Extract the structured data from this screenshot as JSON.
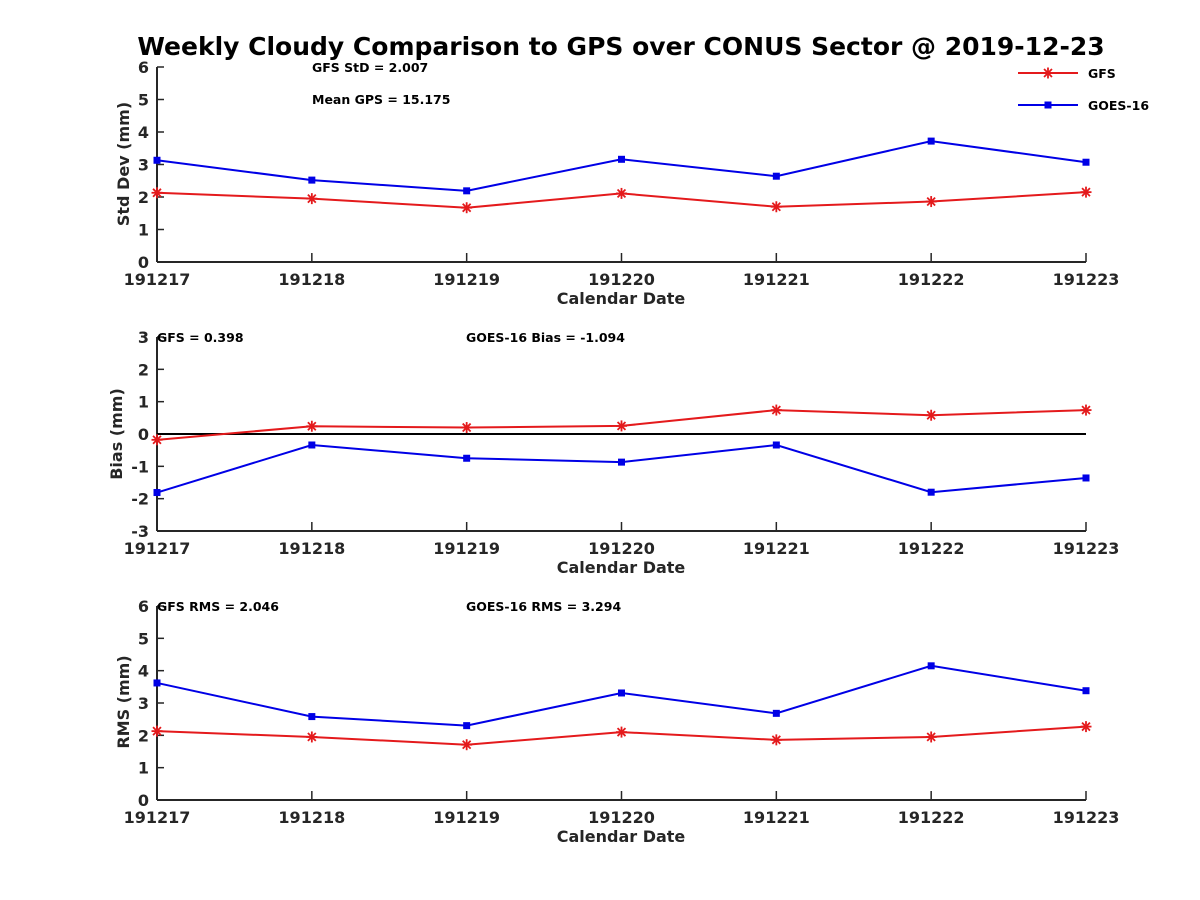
{
  "figure": {
    "title": "Weekly Cloudy Comparison to GPS over CONUS Sector @ 2019-12-23"
  },
  "legend": {
    "placement": "top-right",
    "entries": [
      {
        "name": "GFS",
        "color": "#e41a1c",
        "marker": "asterisk"
      },
      {
        "name": "GOES-16",
        "color": "#0000e6",
        "marker": "square"
      }
    ]
  },
  "chart_data": [
    {
      "type": "line",
      "xlabel": "Calendar Date",
      "ylabel": "Std Dev (mm)",
      "categories": [
        "191217",
        "191218",
        "191219",
        "191220",
        "191221",
        "191222",
        "191223"
      ],
      "ylim": [
        0,
        6
      ],
      "yticks": [
        "0",
        "1",
        "2",
        "3",
        "4",
        "5",
        "6"
      ],
      "zero_line": false,
      "annotations": [
        "GFS StD = 2.007",
        "Mean GPS = 15.175"
      ],
      "series": [
        {
          "name": "GFS",
          "color": "#e41a1c",
          "marker": "asterisk",
          "values": [
            2.13,
            1.95,
            1.67,
            2.11,
            1.7,
            1.86,
            2.15
          ]
        },
        {
          "name": "GOES-16",
          "color": "#0000e6",
          "marker": "square",
          "values": [
            3.13,
            2.52,
            2.19,
            3.16,
            2.64,
            3.72,
            3.07
          ]
        }
      ]
    },
    {
      "type": "line",
      "xlabel": "Calendar Date",
      "ylabel": "Bias (mm)",
      "categories": [
        "191217",
        "191218",
        "191219",
        "191220",
        "191221",
        "191222",
        "191223"
      ],
      "ylim": [
        -3,
        3
      ],
      "yticks": [
        "-3",
        "-2",
        "-1",
        "0",
        "1",
        "2",
        "3"
      ],
      "zero_line": true,
      "annotations": [
        "GFS = 0.398",
        "GOES-16 Bias  = -1.094"
      ],
      "series": [
        {
          "name": "GFS",
          "color": "#e41a1c",
          "marker": "asterisk",
          "values": [
            -0.18,
            0.24,
            0.2,
            0.25,
            0.74,
            0.58,
            0.74
          ]
        },
        {
          "name": "GOES-16",
          "color": "#0000e6",
          "marker": "square",
          "values": [
            -1.81,
            -0.34,
            -0.75,
            -0.87,
            -0.34,
            -1.8,
            -1.36
          ]
        }
      ]
    },
    {
      "type": "line",
      "xlabel": "Calendar Date",
      "ylabel": "RMS (mm)",
      "categories": [
        "191217",
        "191218",
        "191219",
        "191220",
        "191221",
        "191222",
        "191223"
      ],
      "ylim": [
        0,
        6
      ],
      "yticks": [
        "0",
        "1",
        "2",
        "3",
        "4",
        "5",
        "6"
      ],
      "zero_line": false,
      "annotations": [
        "GFS RMS = 2.046",
        "GOES-16 RMS = 3.294"
      ],
      "series": [
        {
          "name": "GFS",
          "color": "#e41a1c",
          "marker": "asterisk",
          "values": [
            2.13,
            1.95,
            1.71,
            2.1,
            1.86,
            1.95,
            2.27
          ]
        },
        {
          "name": "GOES-16",
          "color": "#0000e6",
          "marker": "square",
          "values": [
            3.62,
            2.58,
            2.3,
            3.31,
            2.68,
            4.15,
            3.38
          ]
        }
      ]
    }
  ]
}
